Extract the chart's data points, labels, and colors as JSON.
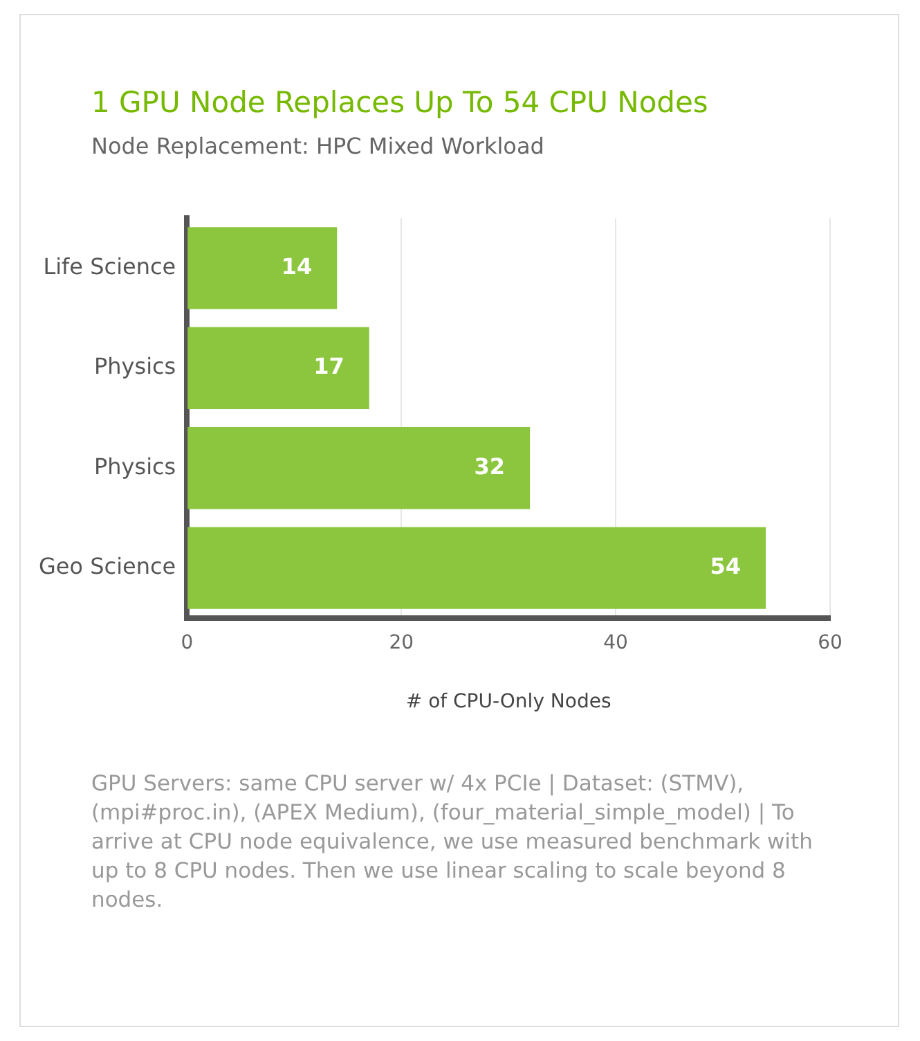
{
  "chart_data": {
    "type": "bar",
    "orientation": "horizontal",
    "title": "1 GPU Node Replaces Up To 54 CPU Nodes",
    "subtitle": "Node Replacement: HPC Mixed Workload",
    "xlabel": "# of CPU-Only Nodes",
    "categories": [
      "Life Science",
      "Physics",
      "Physics",
      "Geo Science"
    ],
    "values": [
      14,
      17,
      32,
      54
    ],
    "color": "#8cc63f",
    "data_labels": true,
    "xlim": [
      0,
      60
    ],
    "xticks": [
      0,
      20,
      40,
      60
    ],
    "grid": "x",
    "annotations": [
      "GPU Servers: same CPU server w/ 4x PCIe | Dataset: (STMV), (mpi#proc.in), (APEX Medium), (four_material_simple_model) | To arrive at CPU node equivalence, we use measured benchmark with up to 8 CPU nodes. Then we use linear scaling to scale beyond 8 nodes."
    ]
  }
}
